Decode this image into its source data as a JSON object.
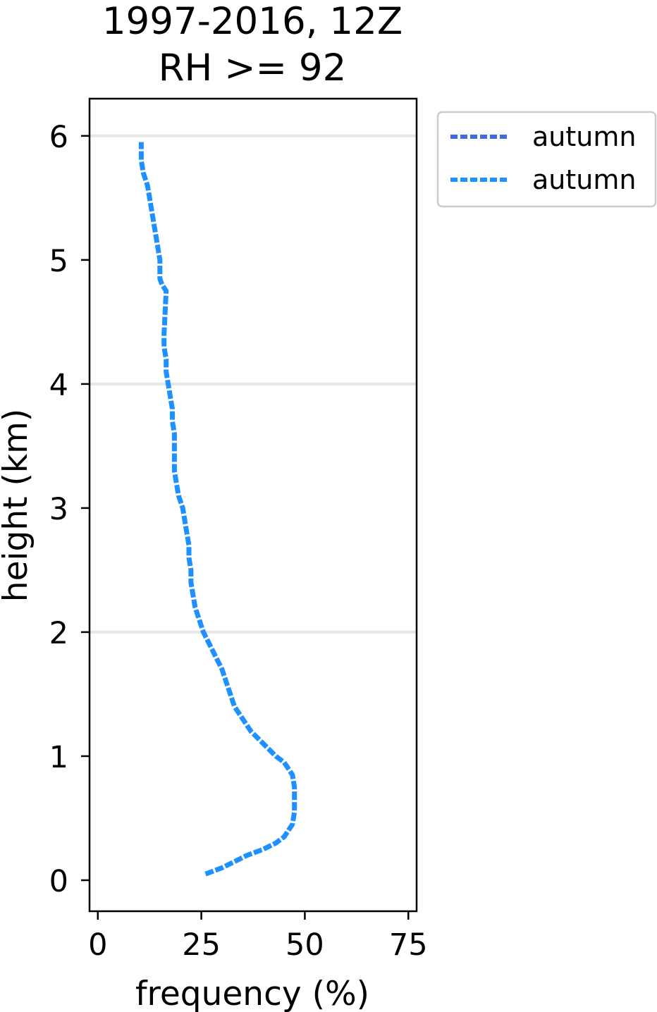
{
  "chart_data": {
    "type": "line",
    "title": "1997-2016, 12Z\nRH >= 92",
    "title_lines": [
      "1997-2016, 12Z",
      "RH >= 92"
    ],
    "xlabel": "frequency (%)",
    "ylabel": "height (km)",
    "xlim": [
      -2,
      77
    ],
    "ylim": [
      -0.25,
      6.3
    ],
    "xticks": [
      0,
      25,
      50,
      75
    ],
    "xtick_labels": [
      "0",
      "25",
      "50",
      "75"
    ],
    "yticks": [
      0,
      1,
      2,
      3,
      4,
      5,
      6
    ],
    "ytick_labels": [
      "0",
      "1",
      "2",
      "3",
      "4",
      "5",
      "6"
    ],
    "grid": "horizontal at y = 2, 4, 6",
    "gridlines_y": [
      2,
      4,
      6
    ],
    "legend_position": "outside upper-right",
    "series": [
      {
        "name": "autumn",
        "color": "#4169e1",
        "style": "dashed",
        "x": [],
        "y": []
      },
      {
        "name": "autumn",
        "color": "#1e90ff",
        "style": "dashed",
        "x": [
          26,
          30,
          33,
          36,
          40,
          43,
          45,
          47,
          47.5,
          47.5,
          47,
          45,
          43,
          40,
          37,
          35,
          33,
          32,
          31,
          30,
          28.5,
          27,
          25.5,
          24.5,
          23.5,
          23,
          22.5,
          22.5,
          22,
          22,
          21.5,
          21,
          20.5,
          19.5,
          19,
          18.5,
          18.5,
          18.5,
          18.5,
          18,
          18,
          17.5,
          17,
          16.5,
          16.5,
          16,
          16,
          16.5,
          15.5,
          15,
          15,
          14.5,
          14,
          13.5,
          13,
          12.5,
          12,
          11,
          10.5,
          10.5
        ],
        "y": [
          0.05,
          0.1,
          0.15,
          0.2,
          0.25,
          0.3,
          0.35,
          0.45,
          0.55,
          0.75,
          0.85,
          0.95,
          1.0,
          1.1,
          1.2,
          1.3,
          1.4,
          1.5,
          1.6,
          1.7,
          1.8,
          1.9,
          2.0,
          2.1,
          2.2,
          2.3,
          2.4,
          2.5,
          2.6,
          2.7,
          2.8,
          2.9,
          3.0,
          3.1,
          3.2,
          3.3,
          3.4,
          3.5,
          3.6,
          3.7,
          3.8,
          3.9,
          4.0,
          4.1,
          4.2,
          4.3,
          4.4,
          4.75,
          4.8,
          4.85,
          5.0,
          5.1,
          5.2,
          5.3,
          5.4,
          5.5,
          5.6,
          5.7,
          5.8,
          5.95
        ]
      }
    ]
  }
}
